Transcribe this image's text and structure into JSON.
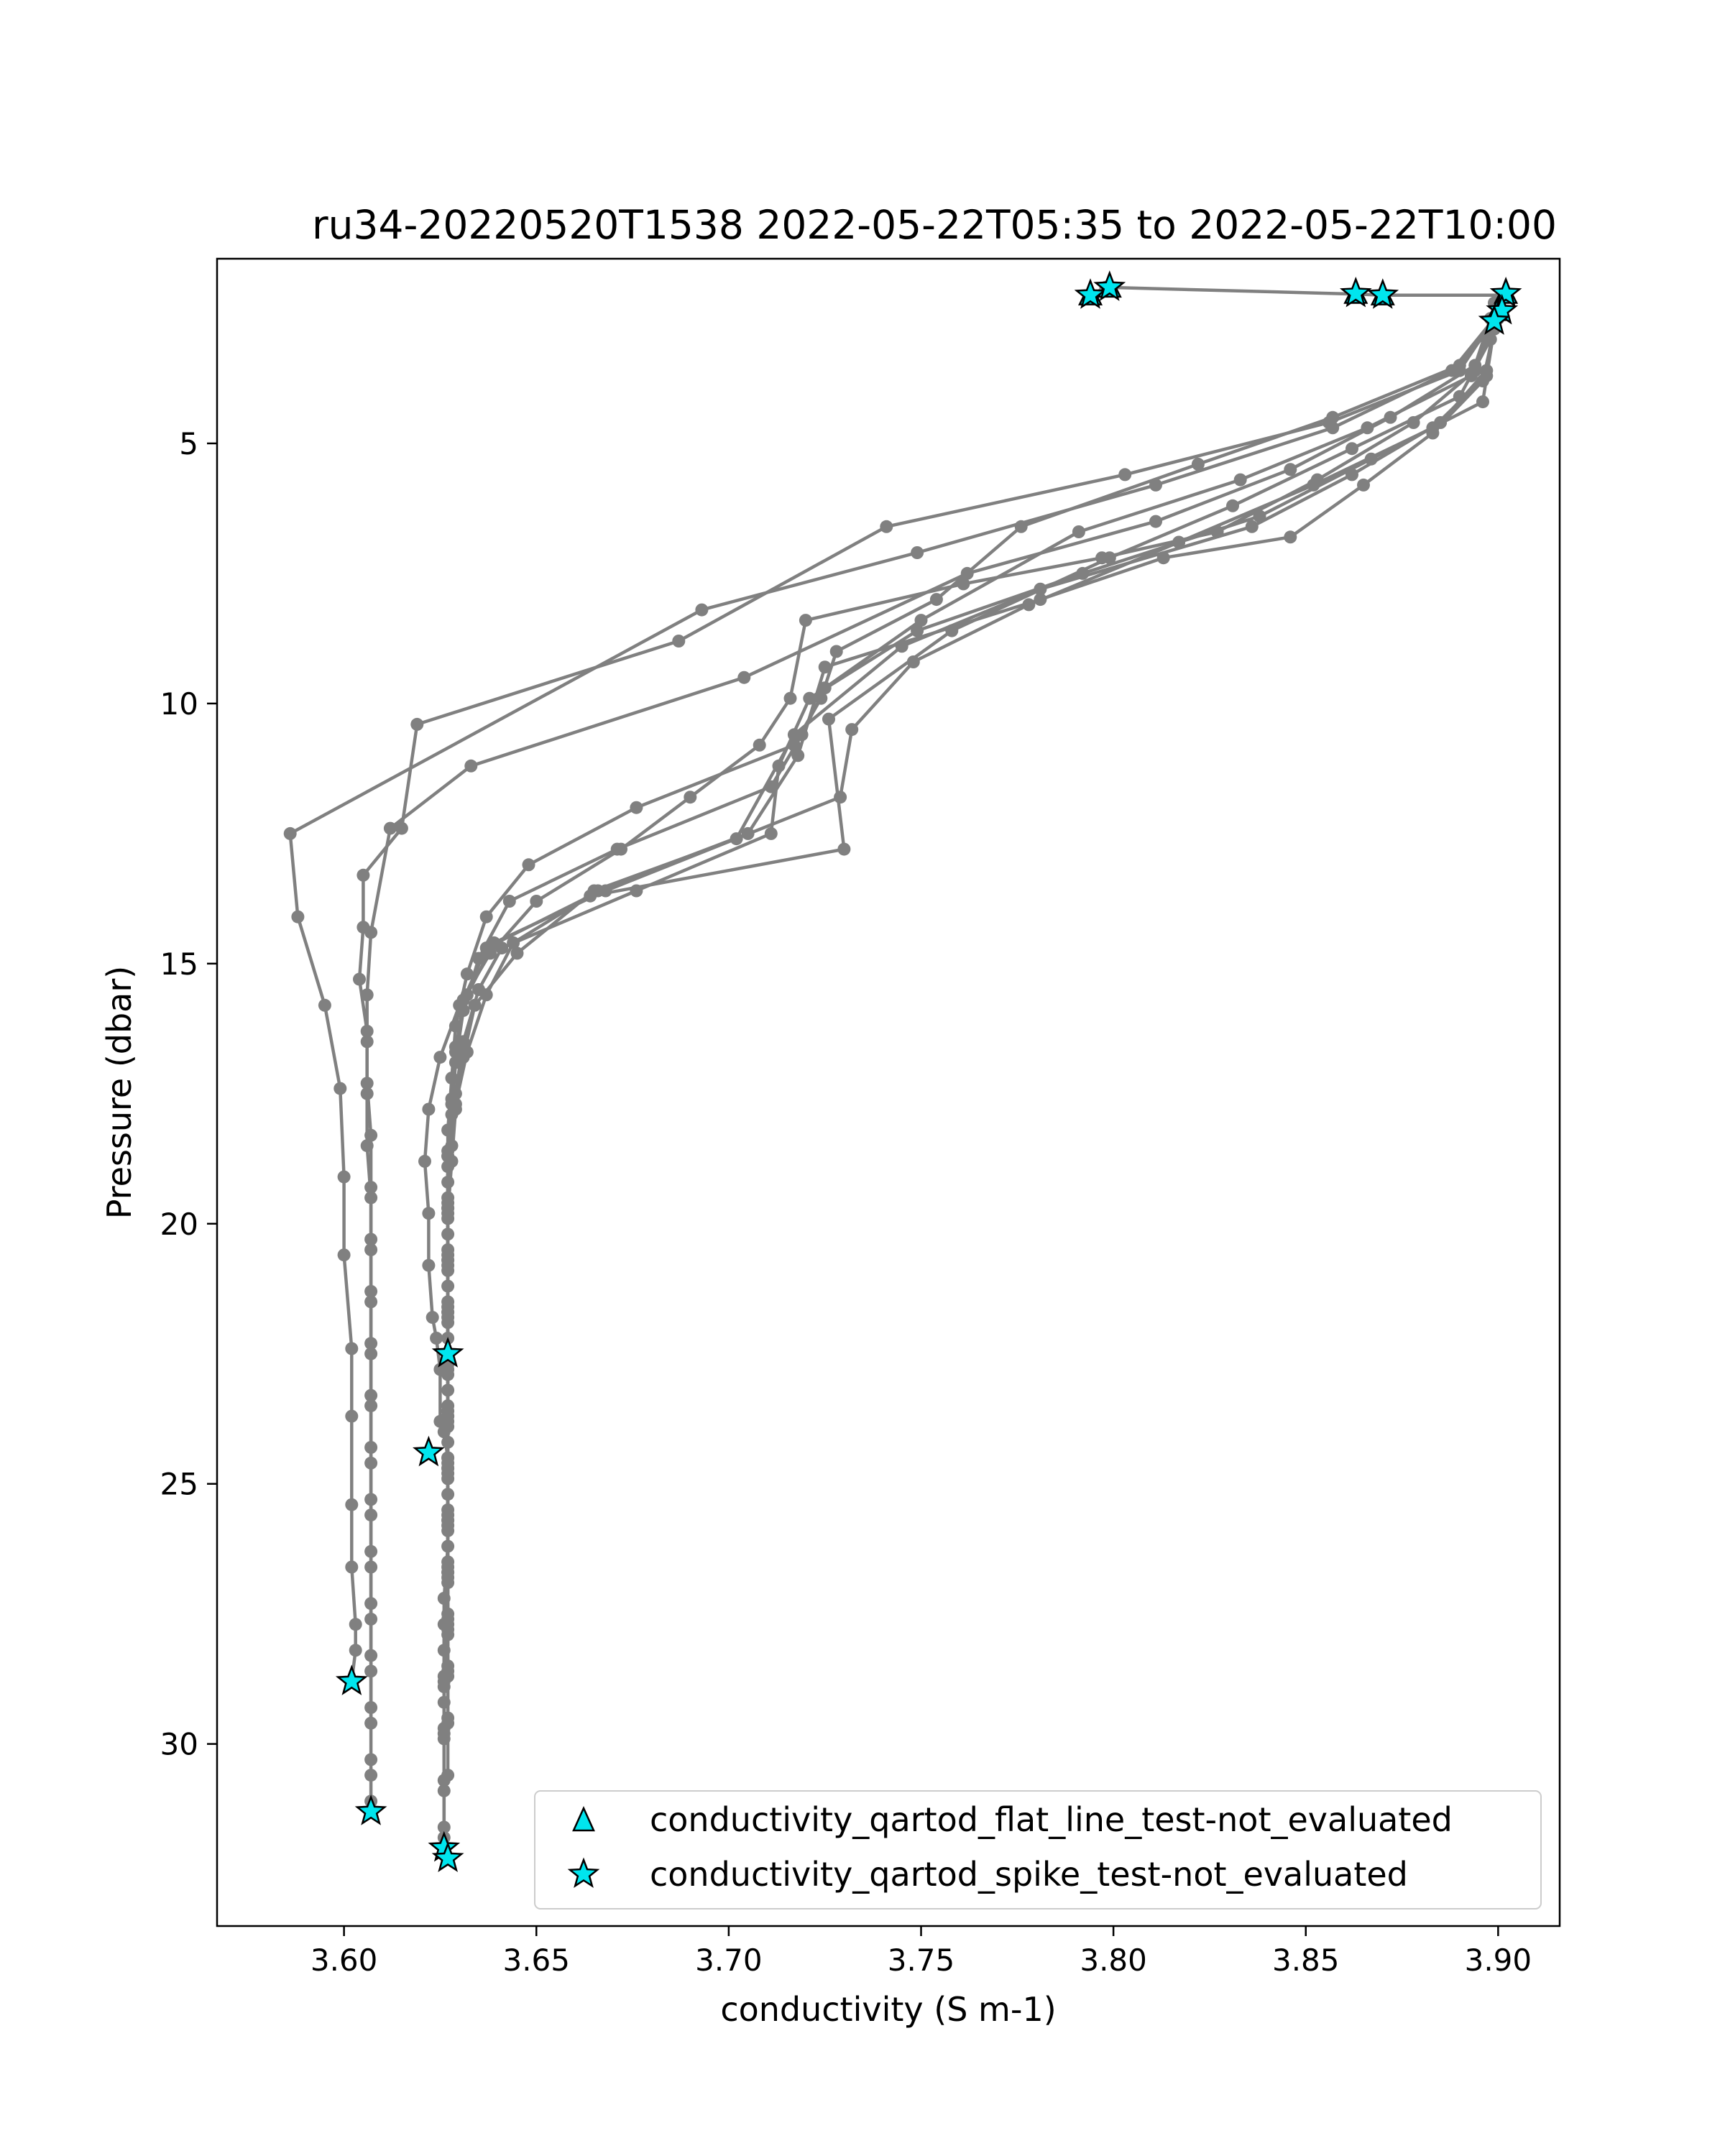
{
  "chart_data": {
    "type": "line",
    "title": "ru34-20220520T1538 2022-05-22T05:35 to 2022-05-22T10:00",
    "xlabel": "conductivity (S m-1)",
    "ylabel": "Pressure (dbar)",
    "xlim": [
      3.567,
      3.916
    ],
    "ylim": [
      33.5,
      1.45
    ],
    "y_inverted": true,
    "grid": false,
    "x_ticks": [
      {
        "v": 3.6,
        "label": "3.60"
      },
      {
        "v": 3.65,
        "label": "3.65"
      },
      {
        "v": 3.7,
        "label": "3.70"
      },
      {
        "v": 3.75,
        "label": "3.75"
      },
      {
        "v": 3.8,
        "label": "3.80"
      },
      {
        "v": 3.85,
        "label": "3.85"
      },
      {
        "v": 3.9,
        "label": "3.90"
      }
    ],
    "y_ticks": [
      {
        "v": 5,
        "label": "5"
      },
      {
        "v": 10,
        "label": "10"
      },
      {
        "v": 15,
        "label": "15"
      },
      {
        "v": 20,
        "label": "20"
      },
      {
        "v": 25,
        "label": "25"
      },
      {
        "v": 30,
        "label": "30"
      }
    ],
    "line_color": "#808080",
    "marker_color": "#00e5ee",
    "legend_position": "lower-right",
    "legend": [
      {
        "label": "conductivity_qartod_flat_line_test-not_evaluated",
        "marker": "triangle"
      },
      {
        "label": "conductivity_qartod_spike_test-not_evaluated",
        "marker": "star"
      }
    ],
    "series": [
      {
        "x": [
          3.899,
          3.897,
          3.885,
          3.862,
          3.836,
          3.781,
          3.745,
          3.717,
          3.702,
          3.665,
          3.645,
          3.634,
          3.631,
          3.629,
          3.628,
          3.627,
          3.627,
          3.627,
          3.627,
          3.627,
          3.627,
          3.627,
          3.627,
          3.627,
          3.626,
          3.626
        ],
        "y": [
          2.6,
          3.6,
          4.6,
          5.6,
          6.6,
          7.8,
          8.9,
          10.6,
          12.6,
          13.6,
          14.8,
          15.8,
          16.8,
          17.8,
          18.8,
          19.8,
          20.8,
          21.8,
          22.8,
          23.8,
          24.8,
          25.8,
          26.8,
          27.8,
          28.8,
          29.8
        ]
      },
      {
        "x": [
          3.898,
          3.894,
          3.872,
          3.846,
          3.811,
          3.762,
          3.704,
          3.633,
          3.612,
          3.607,
          3.606,
          3.606,
          3.606,
          3.606,
          3.607,
          3.607,
          3.607,
          3.607,
          3.607,
          3.607,
          3.607,
          3.607,
          3.607,
          3.607,
          3.607
        ],
        "y": [
          2.6,
          3.5,
          4.5,
          5.5,
          6.5,
          7.5,
          9.5,
          11.2,
          12.4,
          14.4,
          15.6,
          16.5,
          17.5,
          18.5,
          19.5,
          20.5,
          21.5,
          22.5,
          23.5,
          24.6,
          25.6,
          26.6,
          27.6,
          28.6,
          29.6
        ]
      },
      {
        "x": [
          3.899,
          3.896,
          3.883,
          3.865,
          3.846,
          3.813,
          3.781,
          3.725,
          3.718,
          3.705,
          3.666,
          3.644,
          3.637,
          3.632,
          3.629,
          3.627,
          3.627,
          3.627,
          3.627,
          3.627,
          3.627,
          3.627,
          3.627,
          3.627,
          3.627,
          3.627
        ],
        "y": [
          2.8,
          3.8,
          4.8,
          5.8,
          6.8,
          7.2,
          8.0,
          9.3,
          11.0,
          12.5,
          13.6,
          14.6,
          15.6,
          16.7,
          17.7,
          18.7,
          19.7,
          20.7,
          21.7,
          22.7,
          23.7,
          24.7,
          25.7,
          26.7,
          27.7,
          28.7
        ]
      },
      {
        "x": [
          3.9,
          3.896,
          3.867,
          3.838,
          3.792,
          3.749,
          3.721,
          3.713,
          3.711,
          3.676,
          3.641,
          3.635,
          3.631,
          3.629,
          3.628,
          3.627,
          3.627,
          3.627,
          3.627,
          3.627,
          3.627,
          3.627,
          3.627,
          3.627,
          3.627,
          3.627
        ],
        "y": [
          2.3,
          4.2,
          5.3,
          6.4,
          7.5,
          8.6,
          9.9,
          11.2,
          12.5,
          13.6,
          14.7,
          15.5,
          16.5,
          17.5,
          18.5,
          19.5,
          20.5,
          21.5,
          22.5,
          23.5,
          24.5,
          25.5,
          26.5,
          27.5,
          28.5,
          29.5
        ]
      },
      {
        "x": [
          3.9,
          3.89,
          3.857,
          3.822,
          3.776,
          3.754,
          3.728,
          3.724,
          3.717,
          3.676,
          3.648,
          3.637,
          3.632,
          3.629,
          3.628,
          3.627,
          3.627,
          3.627,
          3.627,
          3.627,
          3.627,
          3.627,
          3.627,
          3.627,
          3.626,
          3.626,
          3.626
        ],
        "y": [
          2.6,
          3.5,
          4.5,
          5.4,
          6.6,
          8.0,
          9.0,
          9.9,
          10.8,
          12.0,
          13.1,
          14.1,
          15.2,
          16.2,
          17.2,
          18.2,
          19.2,
          20.2,
          21.2,
          22.2,
          23.2,
          24.2,
          25.2,
          26.2,
          27.2,
          28.2,
          29.2
        ]
      },
      {
        "x": [
          3.899,
          3.893,
          3.866,
          3.833,
          3.791,
          3.75,
          3.725,
          3.719,
          3.711,
          3.671,
          3.643,
          3.635,
          3.631,
          3.629,
          3.628,
          3.627,
          3.627,
          3.627,
          3.627,
          3.627,
          3.627,
          3.627,
          3.627,
          3.627,
          3.627,
          3.626,
          3.626,
          3.626,
          3.626
        ],
        "y": [
          2.8,
          3.7,
          4.7,
          5.7,
          6.7,
          8.4,
          9.7,
          10.6,
          11.6,
          12.8,
          13.8,
          14.9,
          15.9,
          16.9,
          17.9,
          18.9,
          19.9,
          20.9,
          21.9,
          22.9,
          23.9,
          24.9,
          25.9,
          26.9,
          27.9,
          28.9,
          29.9,
          30.9,
          31.8
        ]
      },
      {
        "x": [
          3.898,
          3.89,
          3.862,
          3.831,
          3.799,
          3.758,
          3.726,
          3.73,
          3.664,
          3.637,
          3.631,
          3.629,
          3.628,
          3.627,
          3.627,
          3.627,
          3.627,
          3.627,
          3.627,
          3.627,
          3.627,
          3.627,
          3.626,
          3.626,
          3.626,
          3.626,
          3.626,
          3.626
        ],
        "y": [
          3.0,
          4.1,
          5.1,
          6.2,
          7.2,
          8.6,
          10.3,
          12.8,
          13.7,
          14.7,
          15.7,
          16.7,
          17.7,
          18.7,
          19.7,
          20.7,
          21.7,
          22.7,
          23.7,
          24.7,
          25.7,
          26.7,
          27.7,
          28.7,
          29.7,
          30.7,
          31.6,
          32.0
        ]
      },
      {
        "x": [
          3.897,
          3.883,
          3.852,
          3.817,
          3.778,
          3.748,
          3.732,
          3.729,
          3.668,
          3.639,
          3.632,
          3.629,
          3.628,
          3.627,
          3.627,
          3.627,
          3.627,
          3.627,
          3.627,
          3.627,
          3.627,
          3.627,
          3.627,
          3.627,
          3.627,
          3.627
        ],
        "y": [
          3.7,
          4.7,
          5.8,
          6.9,
          8.1,
          9.2,
          10.5,
          11.8,
          13.6,
          14.6,
          15.6,
          16.6,
          17.6,
          18.6,
          19.6,
          20.6,
          21.6,
          22.6,
          23.6,
          24.6,
          25.6,
          26.6,
          27.6,
          28.6,
          29.6,
          30.6
        ]
      },
      {
        "x": [
          3.899,
          3.89,
          3.856,
          3.803,
          3.741,
          3.687,
          3.619,
          3.615,
          3.605,
          3.605,
          3.604,
          3.606,
          3.606,
          3.607,
          3.607,
          3.607,
          3.607,
          3.607,
          3.607,
          3.607,
          3.607,
          3.607,
          3.607,
          3.607,
          3.607,
          3.607,
          3.607,
          3.607,
          3.607
        ],
        "y": [
          2.6,
          3.6,
          4.6,
          5.6,
          6.6,
          8.8,
          10.4,
          12.4,
          13.3,
          14.3,
          15.3,
          16.3,
          17.3,
          18.3,
          19.3,
          20.3,
          21.3,
          22.3,
          23.3,
          24.3,
          25.3,
          26.3,
          27.3,
          28.3,
          29.3,
          30.3,
          30.6,
          31.1,
          31.3
        ]
      },
      {
        "x": [
          3.899,
          3.888,
          3.857,
          3.811,
          3.749,
          3.693,
          3.586,
          3.588,
          3.595,
          3.599,
          3.6,
          3.6,
          3.602,
          3.602,
          3.602,
          3.602,
          3.603,
          3.603,
          3.602
        ],
        "y": [
          2.6,
          3.6,
          4.7,
          5.8,
          7.1,
          8.2,
          12.5,
          14.1,
          15.8,
          17.4,
          19.1,
          20.6,
          22.4,
          23.7,
          25.4,
          26.6,
          27.7,
          28.2,
          28.8
        ]
      },
      {
        "x": [
          3.899,
          3.894,
          3.878,
          3.853,
          3.827,
          3.797,
          3.761,
          3.72,
          3.716,
          3.708,
          3.69,
          3.672,
          3.65,
          3.638,
          3.63,
          3.625,
          3.622,
          3.621,
          3.622,
          3.622,
          3.623,
          3.624,
          3.625,
          3.625,
          3.626,
          3.627
        ],
        "y": [
          2.6,
          3.6,
          4.6,
          5.7,
          6.7,
          7.2,
          7.7,
          8.4,
          9.9,
          10.8,
          11.8,
          12.8,
          13.8,
          14.8,
          15.8,
          16.8,
          17.8,
          18.8,
          19.8,
          20.8,
          21.8,
          22.2,
          22.8,
          23.8,
          24.0,
          24.5
        ]
      }
    ],
    "top_path": {
      "x": [
        3.794,
        3.798,
        3.863,
        3.87,
        3.901,
        3.899,
        3.901,
        3.899
      ],
      "y": [
        2.15,
        2.0,
        2.13,
        2.15,
        2.15,
        2.3,
        2.5,
        2.6
      ]
    },
    "flat_line_markers": {
      "x": [
        3.794,
        3.799,
        3.863,
        3.87,
        3.902,
        3.9
      ],
      "y": [
        2.15,
        2.0,
        2.12,
        2.15,
        2.12,
        2.45
      ]
    },
    "spike_markers": {
      "x": [
        3.794,
        3.799,
        3.863,
        3.87,
        3.902,
        3.901,
        3.899,
        3.627,
        3.622,
        3.602,
        3.607,
        3.626,
        3.627
      ],
      "y": [
        2.15,
        2.0,
        2.12,
        2.15,
        2.12,
        2.45,
        2.65,
        22.5,
        24.4,
        28.8,
        31.3,
        32.0,
        32.2
      ]
    }
  }
}
